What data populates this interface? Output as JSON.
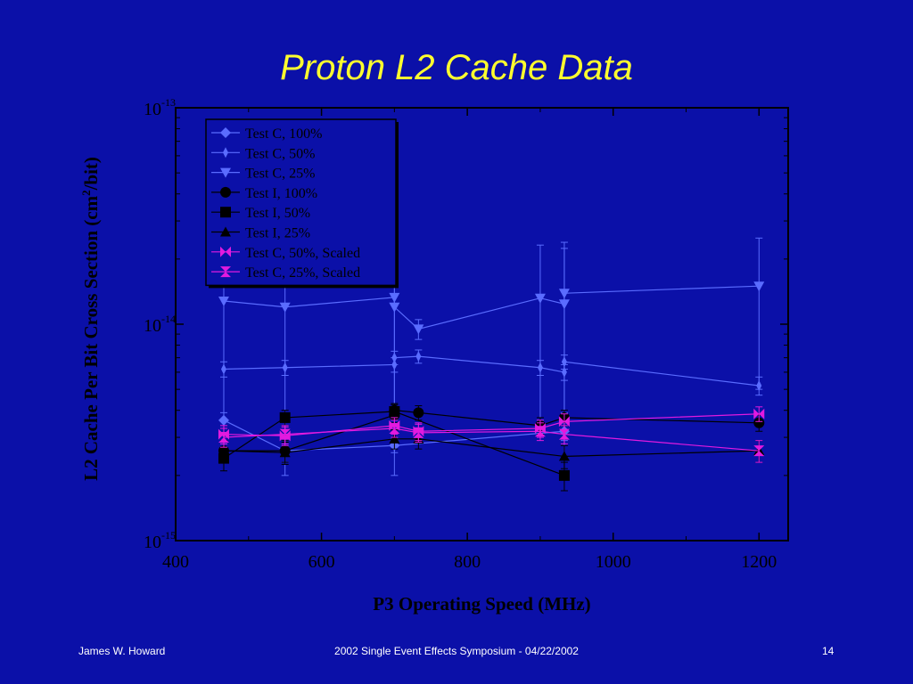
{
  "slide": {
    "title": "Proton L2 Cache Data",
    "footer_left": "James W. Howard",
    "footer_center": "2002 Single Event Effects Symposium - 04/22/2002",
    "footer_right": "14"
  },
  "colors": {
    "background": "#0b10a8",
    "title": "#ffff2e",
    "axes": "#000000",
    "test_c": "#5a6cff",
    "test_i": "#000000",
    "scaled": "#e21adf"
  },
  "chart_data": {
    "type": "line",
    "title": "",
    "xlabel": "P3 Operating Speed (MHz)",
    "ylabel": "L2 Cache Per Bit Cross Section (cm²/bit)",
    "ylabel_base": "L2 Cache Per Bit Cross Section (cm",
    "ylabel_sup": "2",
    "ylabel_tail": "/bit)",
    "xlim": [
      400,
      1240
    ],
    "ylim": [
      1e-15,
      1e-13
    ],
    "yscale": "log",
    "xticks": [
      400,
      600,
      800,
      1000,
      1200
    ],
    "yticks": [
      {
        "base": "10",
        "exp": "-15",
        "value": 1e-15
      },
      {
        "base": "10",
        "exp": "-14",
        "value": 1e-14
      },
      {
        "base": "10",
        "exp": "-13",
        "value": 1e-13
      }
    ],
    "legend_position": "top-left",
    "series": [
      {
        "name": "Test C, 100%",
        "color": "#5a6cff",
        "marker": "diamond",
        "x": [
          466,
          550,
          700,
          933
        ],
        "y": [
          3.6e-15,
          2.6e-15,
          2.75e-15,
          3.2e-15
        ],
        "err": [
          0.3,
          0.3,
          0.2,
          0.3
        ]
      },
      {
        "name": "Test C, 50%",
        "color": "#5a6cff",
        "marker": "thin-diamond",
        "x": [
          466,
          550,
          700,
          700,
          733,
          900,
          933,
          933,
          1200
        ],
        "y": [
          6.2e-15,
          6.3e-15,
          6.5e-15,
          7e-15,
          7.1e-15,
          6.3e-15,
          6e-15,
          6.7e-15,
          5.2e-15
        ],
        "err": [
          0.5,
          0.5,
          0.5,
          0.5,
          0.5,
          0.5,
          0.5,
          0.5,
          0.5
        ]
      },
      {
        "name": "Test C, 25%",
        "color": "#5a6cff",
        "marker": "triangle-down",
        "x": [
          466,
          550,
          700,
          700,
          733,
          900,
          933,
          933,
          1200
        ],
        "y": [
          1.28e-14,
          1.2e-14,
          1.33e-14,
          1.2e-14,
          9.5e-15,
          1.32e-14,
          1.24e-14,
          1.39e-14,
          1.5e-14
        ],
        "err": [
          1,
          1,
          1,
          1,
          1,
          1,
          1,
          1,
          1
        ]
      },
      {
        "name": "Test I, 100%",
        "color": "#000000",
        "marker": "circle",
        "x": [
          466,
          550,
          700,
          700,
          733,
          900,
          933,
          1200
        ],
        "y": [
          2.6e-15,
          2.6e-15,
          3.8e-15,
          4e-15,
          3.9e-15,
          3.4e-15,
          3.7e-15,
          3.5e-15
        ],
        "err": [
          0.3,
          0.3,
          0.3,
          0.3,
          0.3,
          0.3,
          0.3,
          0.3
        ]
      },
      {
        "name": "Test I, 50%",
        "color": "#000000",
        "marker": "square",
        "x": [
          466,
          550,
          700,
          933
        ],
        "y": [
          2.4e-15,
          3.7e-15,
          3.95e-15,
          2e-15
        ],
        "err": [
          0.3,
          0.3,
          0.3,
          0.3
        ]
      },
      {
        "name": "Test I, 25%",
        "color": "#000000",
        "marker": "triangle-up",
        "x": [
          466,
          550,
          700,
          733,
          933,
          1200
        ],
        "y": [
          2.6e-15,
          2.55e-15,
          2.95e-15,
          2.95e-15,
          2.45e-15,
          2.6e-15
        ],
        "err": [
          0.3,
          0.3,
          0.3,
          0.3,
          0.3,
          0.3
        ]
      },
      {
        "name": "Test C, 50%, Scaled",
        "color": "#e21adf",
        "marker": "bowtie",
        "x": [
          466,
          550,
          700,
          733,
          900,
          933,
          1200
        ],
        "y": [
          3.1e-15,
          3.05e-15,
          3.4e-15,
          3.2e-15,
          3.3e-15,
          3.55e-15,
          3.85e-15
        ],
        "err": [
          0.3,
          0.3,
          0.3,
          0.3,
          0.3,
          0.3,
          0.3
        ]
      },
      {
        "name": "Test C, 25%, Scaled",
        "color": "#e21adf",
        "marker": "hourglass",
        "x": [
          466,
          550,
          700,
          733,
          900,
          933,
          1200
        ],
        "y": [
          3e-15,
          3.1e-15,
          3.3e-15,
          3.15e-15,
          3.2e-15,
          3.1e-15,
          2.6e-15
        ],
        "err": [
          0.3,
          0.3,
          0.3,
          0.3,
          0.3,
          0.3,
          0.3
        ]
      }
    ]
  }
}
